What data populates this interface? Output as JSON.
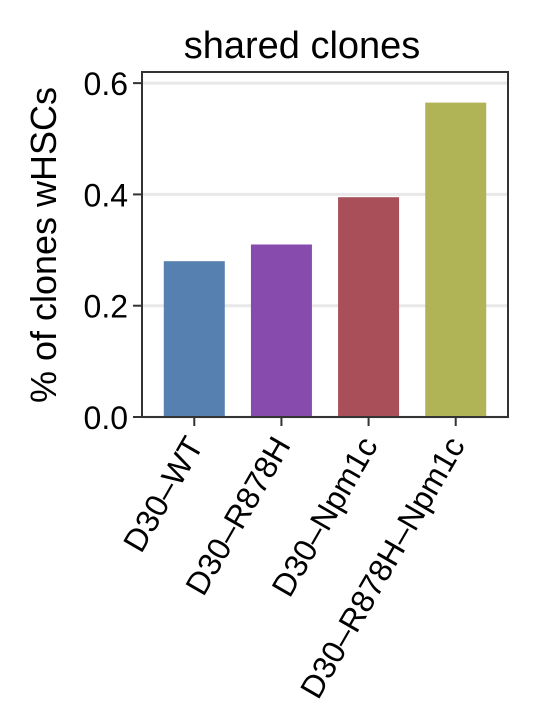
{
  "chart_data": {
    "type": "bar",
    "title": "shared clones",
    "xlabel": "",
    "ylabel": "% of clones wHSCs",
    "categories": [
      "D30–WT",
      "D30–R878H",
      "D30–Npm1c",
      "D30–R878H–Npm1c"
    ],
    "values": [
      0.28,
      0.31,
      0.395,
      0.565
    ],
    "colors": [
      "#5580b0",
      "#864bad",
      "#a94f59",
      "#b0b456"
    ],
    "ylim": [
      0,
      0.62
    ],
    "yticks": [
      0.0,
      0.2,
      0.4,
      0.6
    ],
    "ytick_labels": [
      "0.0",
      "0.2",
      "0.4",
      "0.6"
    ],
    "grid": "horizontal",
    "legend": "none"
  }
}
